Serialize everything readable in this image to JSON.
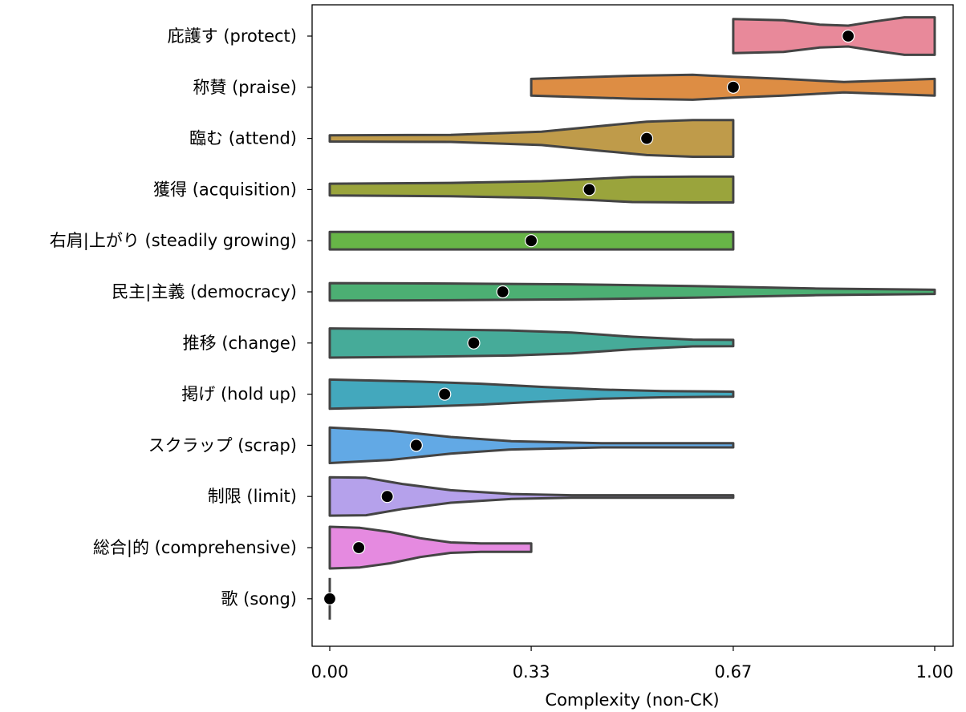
{
  "chart_data": {
    "type": "violin",
    "orientation": "horizontal",
    "xlabel": "Complexity (non-CK)",
    "ylabel": "",
    "xlim": [
      -0.03,
      1.03
    ],
    "x_ticks": [
      0.0,
      0.333,
      0.667,
      1.0
    ],
    "x_tick_labels": [
      "0.00",
      "0.33",
      "0.67",
      "1.00"
    ],
    "grid": false,
    "legend": "none",
    "categories": [
      {
        "label": "庇護す (protect)",
        "color": "#e8899a",
        "min": 0.667,
        "max": 1.0,
        "mean": 0.857,
        "density_profile": [
          [
            0.667,
            0.82
          ],
          [
            0.75,
            0.76
          ],
          [
            0.81,
            0.55
          ],
          [
            0.857,
            0.5
          ],
          [
            0.9,
            0.7
          ],
          [
            0.95,
            0.9
          ],
          [
            1.0,
            0.9
          ]
        ]
      },
      {
        "label": "称賛 (praise)",
        "color": "#dd8d44",
        "min": 0.333,
        "max": 1.0,
        "mean": 0.667,
        "density_profile": [
          [
            0.333,
            0.4
          ],
          [
            0.5,
            0.55
          ],
          [
            0.6,
            0.6
          ],
          [
            0.667,
            0.5
          ],
          [
            0.75,
            0.4
          ],
          [
            0.85,
            0.25
          ],
          [
            1.0,
            0.4
          ]
        ]
      },
      {
        "label": "臨む (attend)",
        "color": "#bf9b4a",
        "min": 0.0,
        "max": 0.667,
        "mean": 0.524,
        "density_profile": [
          [
            0.0,
            0.15
          ],
          [
            0.2,
            0.17
          ],
          [
            0.35,
            0.32
          ],
          [
            0.45,
            0.6
          ],
          [
            0.524,
            0.8
          ],
          [
            0.6,
            0.88
          ],
          [
            0.667,
            0.88
          ]
        ]
      },
      {
        "label": "獲得 (acquisition)",
        "color": "#9aa43c",
        "min": 0.0,
        "max": 0.667,
        "mean": 0.429,
        "density_profile": [
          [
            0.0,
            0.28
          ],
          [
            0.2,
            0.32
          ],
          [
            0.35,
            0.4
          ],
          [
            0.429,
            0.5
          ],
          [
            0.5,
            0.6
          ],
          [
            0.6,
            0.62
          ],
          [
            0.667,
            0.62
          ]
        ]
      },
      {
        "label": "右肩|上がり (steadily growing)",
        "color": "#67b547",
        "min": 0.0,
        "max": 0.667,
        "mean": 0.333,
        "density_profile": [
          [
            0.0,
            0.42
          ],
          [
            0.333,
            0.42
          ],
          [
            0.667,
            0.42
          ]
        ]
      },
      {
        "label": "民主|主義 (democracy)",
        "color": "#4caf73",
        "min": 0.0,
        "max": 1.0,
        "mean": 0.286,
        "density_profile": [
          [
            0.0,
            0.42
          ],
          [
            0.2,
            0.4
          ],
          [
            0.4,
            0.36
          ],
          [
            0.6,
            0.28
          ],
          [
            0.8,
            0.16
          ],
          [
            1.0,
            0.1
          ]
        ]
      },
      {
        "label": "推移 (change)",
        "color": "#46ab99",
        "min": 0.0,
        "max": 0.667,
        "mean": 0.238,
        "density_profile": [
          [
            0.0,
            0.7
          ],
          [
            0.15,
            0.66
          ],
          [
            0.3,
            0.6
          ],
          [
            0.4,
            0.5
          ],
          [
            0.5,
            0.3
          ],
          [
            0.6,
            0.16
          ],
          [
            0.667,
            0.15
          ]
        ]
      },
      {
        "label": "掲げ (hold up)",
        "color": "#43a8bd",
        "min": 0.0,
        "max": 0.667,
        "mean": 0.19,
        "density_profile": [
          [
            0.0,
            0.7
          ],
          [
            0.15,
            0.6
          ],
          [
            0.25,
            0.5
          ],
          [
            0.35,
            0.35
          ],
          [
            0.45,
            0.22
          ],
          [
            0.55,
            0.15
          ],
          [
            0.667,
            0.12
          ]
        ]
      },
      {
        "label": "スクラップ (scrap)",
        "color": "#62a9e5",
        "min": 0.0,
        "max": 0.667,
        "mean": 0.143,
        "density_profile": [
          [
            0.0,
            0.85
          ],
          [
            0.1,
            0.7
          ],
          [
            0.2,
            0.4
          ],
          [
            0.3,
            0.2
          ],
          [
            0.45,
            0.1
          ],
          [
            0.667,
            0.1
          ]
        ]
      },
      {
        "label": "制限 (limit)",
        "color": "#b5a1eb",
        "min": 0.0,
        "max": 0.667,
        "mean": 0.095,
        "density_profile": [
          [
            0.0,
            0.92
          ],
          [
            0.06,
            0.9
          ],
          [
            0.12,
            0.6
          ],
          [
            0.2,
            0.3
          ],
          [
            0.3,
            0.12
          ],
          [
            0.4,
            0.06
          ],
          [
            0.667,
            0.06
          ]
        ]
      },
      {
        "label": "総合|的 (comprehensive)",
        "color": "#e58ae0",
        "min": 0.0,
        "max": 0.333,
        "mean": 0.048,
        "density_profile": [
          [
            0.0,
            1.0
          ],
          [
            0.05,
            0.95
          ],
          [
            0.1,
            0.75
          ],
          [
            0.15,
            0.45
          ],
          [
            0.2,
            0.25
          ],
          [
            0.25,
            0.2
          ],
          [
            0.333,
            0.2
          ]
        ]
      },
      {
        "label": "歌 (song)",
        "color": "#444444",
        "min": 0.0,
        "max": 0.0,
        "mean": 0.0,
        "density_profile": [
          [
            0.0,
            1.0
          ]
        ]
      }
    ]
  }
}
